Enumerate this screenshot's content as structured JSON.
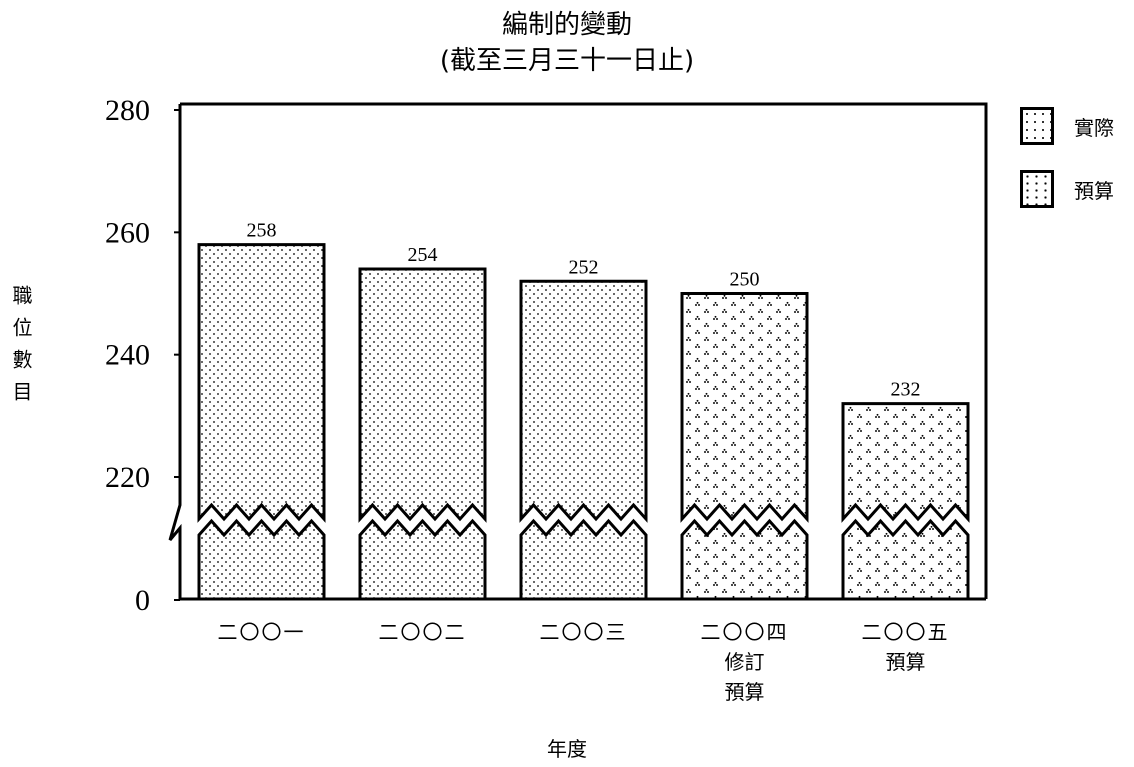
{
  "title": "編制的變動",
  "subtitle": "(截至三月三十一日止)",
  "chart_data": {
    "type": "bar",
    "title": "編制的變動",
    "subtitle": "(截至三月三十一日止)",
    "xlabel": "年度",
    "ylabel": "職位數目",
    "categories": [
      "二〇〇一",
      "二〇〇二",
      "二〇〇三",
      "二〇〇四\n修訂\n預算",
      "二〇〇五\n預算"
    ],
    "category_lines": [
      [
        "二〇〇一"
      ],
      [
        "二〇〇二"
      ],
      [
        "二〇〇三"
      ],
      [
        "二〇〇四",
        "修訂",
        "預算"
      ],
      [
        "二〇〇五",
        "預算"
      ]
    ],
    "values": [
      258,
      254,
      252,
      250,
      232
    ],
    "bar_types": [
      "actual",
      "actual",
      "actual",
      "estimate",
      "estimate"
    ],
    "y_ticks": [
      0,
      220,
      240,
      260,
      280
    ],
    "ylim": [
      210,
      280
    ],
    "axis_break": true,
    "legend": [
      {
        "key": "actual",
        "label": "實際"
      },
      {
        "key": "estimate",
        "label": "預算"
      }
    ],
    "legend_position": "top-right",
    "grid": false,
    "colors": {
      "stroke": "#000000",
      "fill": "#ffffff",
      "dot": "#000000"
    }
  }
}
